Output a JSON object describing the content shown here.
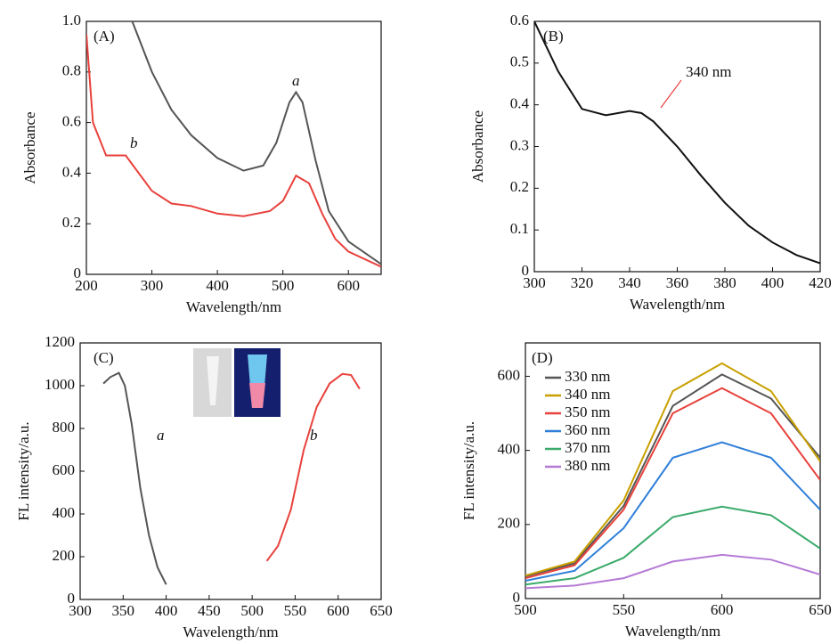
{
  "chart_data": [
    {
      "type": "line",
      "annotations": [
        "(A)",
        "a",
        "b"
      ],
      "x_label": "Wavelength/nm",
      "y_label": "Absorbance",
      "xlim": [
        200,
        650
      ],
      "ylim": [
        0,
        1
      ],
      "xticks": [
        200,
        300,
        400,
        500,
        600
      ],
      "yticks": [
        0,
        0.2,
        0.4,
        0.6,
        0.8,
        {
          "value": 1,
          "label": "1.0"
        }
      ],
      "series": [
        {
          "color": "#555555",
          "x": [
            270,
            300,
            330,
            360,
            400,
            440,
            470,
            490,
            510,
            520,
            530,
            550,
            570,
            600,
            650
          ],
          "values": [
            1.0,
            0.8,
            0.65,
            0.55,
            0.46,
            0.41,
            0.43,
            0.52,
            0.68,
            0.72,
            0.68,
            0.45,
            0.25,
            0.13,
            0.04
          ]
        },
        {
          "color": "#e8413c",
          "x": [
            200,
            210,
            230,
            260,
            280,
            300,
            330,
            360,
            400,
            440,
            480,
            500,
            520,
            540,
            560,
            580,
            600,
            650
          ],
          "values": [
            0.95,
            0.6,
            0.47,
            0.47,
            0.4,
            0.33,
            0.28,
            0.27,
            0.24,
            0.23,
            0.25,
            0.29,
            0.39,
            0.36,
            0.24,
            0.14,
            0.09,
            0.03
          ]
        }
      ]
    },
    {
      "type": "line",
      "annotations": [
        "(B)",
        "340 nm"
      ],
      "x_label": "Wavelength/nm",
      "y_label": "Absorbance",
      "xlim": [
        300,
        420
      ],
      "ylim": [
        0,
        0.6
      ],
      "xticks": [
        300,
        320,
        340,
        360,
        380,
        400,
        420
      ],
      "yticks": [
        0,
        0.1,
        0.2,
        0.3,
        0.4,
        0.5,
        0.6
      ],
      "series": [
        {
          "color": "#111111",
          "x": [
            300,
            310,
            320,
            330,
            340,
            345,
            350,
            360,
            370,
            380,
            390,
            400,
            410,
            420
          ],
          "values": [
            0.6,
            0.48,
            0.39,
            0.375,
            0.385,
            0.38,
            0.36,
            0.3,
            0.23,
            0.165,
            0.11,
            0.07,
            0.04,
            0.02
          ]
        }
      ]
    },
    {
      "type": "line",
      "annotations": [
        "(C)",
        "a",
        "b"
      ],
      "x_label": "Wavelength/nm",
      "y_label": "FL intensity/a.u.",
      "xlim": [
        300,
        650
      ],
      "ylim": [
        0,
        1200
      ],
      "xticks": [
        300,
        350,
        400,
        450,
        500,
        550,
        600,
        650
      ],
      "yticks": [
        0,
        200,
        400,
        600,
        800,
        1000,
        1200
      ],
      "series": [
        {
          "color": "#555555",
          "x": [
            327,
            335,
            345,
            352,
            360,
            370,
            380,
            390,
            400
          ],
          "values": [
            1010,
            1040,
            1060,
            1000,
            820,
            520,
            300,
            150,
            70
          ]
        },
        {
          "color": "#e8413c",
          "x": [
            517,
            530,
            545,
            560,
            575,
            590,
            605,
            615,
            625
          ],
          "values": [
            180,
            250,
            420,
            700,
            900,
            1010,
            1055,
            1050,
            985
          ]
        }
      ]
    },
    {
      "type": "line",
      "annotations": [
        "(D)"
      ],
      "x_label": "Wavelength/nm",
      "y_label": "FL intensity/a.u.",
      "xlim": [
        500,
        650
      ],
      "ylim": [
        0,
        690
      ],
      "xticks": [
        500,
        550,
        600,
        650
      ],
      "yticks": [
        0,
        200,
        400,
        600
      ],
      "series": [
        {
          "name": "330 nm",
          "color": "#555555",
          "x": [
            500,
            525,
            550,
            575,
            600,
            625,
            650
          ],
          "values": [
            60,
            95,
            250,
            520,
            605,
            540,
            380
          ]
        },
        {
          "name": "340 nm",
          "color": "#c8a000",
          "x": [
            500,
            525,
            550,
            575,
            600,
            625,
            650
          ],
          "values": [
            62,
            100,
            265,
            560,
            635,
            560,
            370
          ]
        },
        {
          "name": "350 nm",
          "color": "#e8413c",
          "x": [
            500,
            525,
            550,
            575,
            600,
            625,
            650
          ],
          "values": [
            55,
            90,
            240,
            500,
            568,
            500,
            320
          ]
        },
        {
          "name": "360 nm",
          "color": "#2f7fd8",
          "x": [
            500,
            525,
            550,
            575,
            600,
            625,
            650
          ],
          "values": [
            48,
            75,
            190,
            380,
            422,
            380,
            240
          ]
        },
        {
          "name": "370 nm",
          "color": "#3aaa6a",
          "x": [
            500,
            525,
            550,
            575,
            600,
            625,
            650
          ],
          "values": [
            38,
            55,
            110,
            220,
            248,
            225,
            135
          ]
        },
        {
          "name": "380 nm",
          "color": "#b57ad6",
          "x": [
            500,
            525,
            550,
            575,
            600,
            625,
            650
          ],
          "values": [
            28,
            35,
            55,
            100,
            118,
            105,
            65
          ]
        }
      ]
    }
  ]
}
